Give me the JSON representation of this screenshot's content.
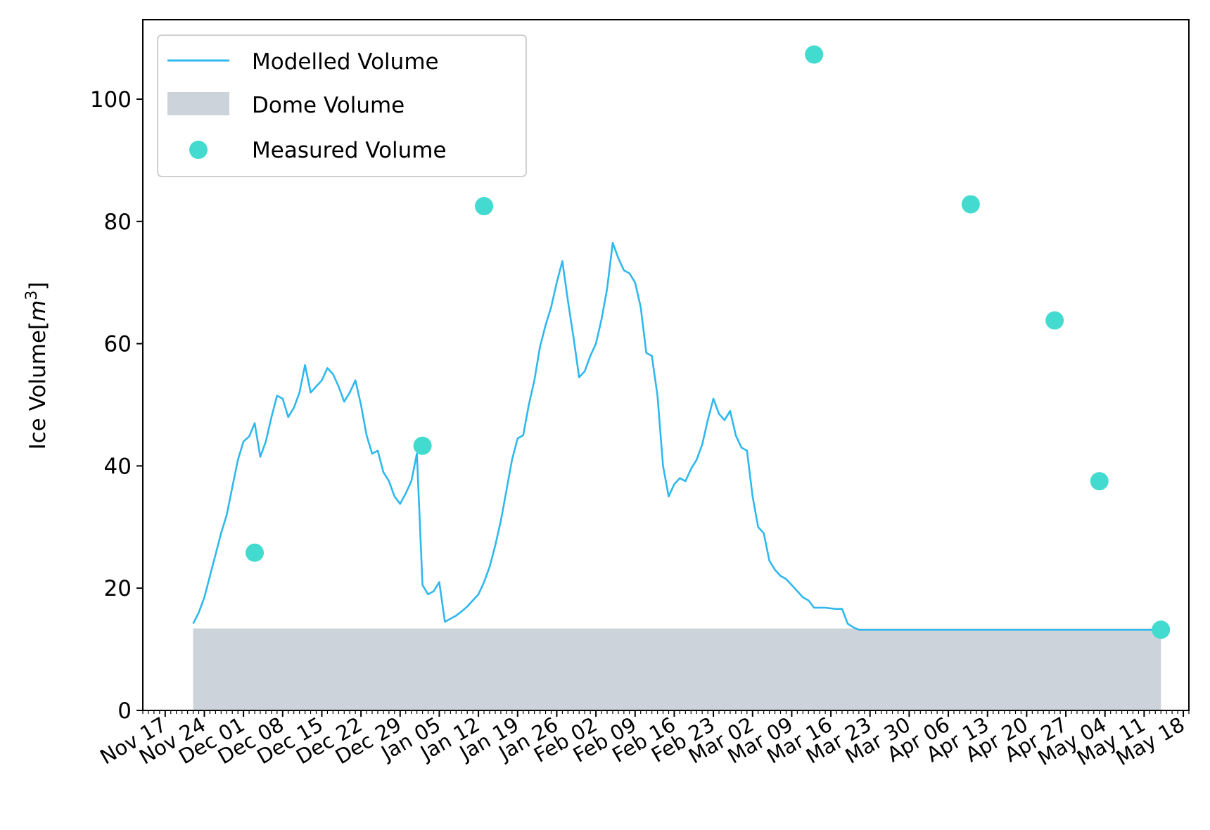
{
  "chart_data": {
    "type": "line",
    "ylabel_text": "Ice Volume[",
    "ylabel_unit_base": "m",
    "ylabel_unit_exp": "3",
    "ylabel_suffix": "]",
    "ylim": [
      0,
      113
    ],
    "xlim": [
      "2018-11-13",
      "2019-05-19"
    ],
    "y_ticks": [
      0,
      20,
      40,
      60,
      80,
      100
    ],
    "x_tick_labels": [
      {
        "date": "2018-11-17",
        "label": "Nov 17"
      },
      {
        "date": "2018-11-24",
        "label": "Nov 24"
      },
      {
        "date": "2018-12-01",
        "label": "Dec 01"
      },
      {
        "date": "2018-12-08",
        "label": "Dec 08"
      },
      {
        "date": "2018-12-15",
        "label": "Dec 15"
      },
      {
        "date": "2018-12-22",
        "label": "Dec 22"
      },
      {
        "date": "2018-12-29",
        "label": "Dec 29"
      },
      {
        "date": "2019-01-05",
        "label": "Jan 05"
      },
      {
        "date": "2019-01-12",
        "label": "Jan 12"
      },
      {
        "date": "2019-01-19",
        "label": "Jan 19"
      },
      {
        "date": "2019-01-26",
        "label": "Jan 26"
      },
      {
        "date": "2019-02-02",
        "label": "Feb 02"
      },
      {
        "date": "2019-02-09",
        "label": "Feb 09"
      },
      {
        "date": "2019-02-16",
        "label": "Feb 16"
      },
      {
        "date": "2019-02-23",
        "label": "Feb 23"
      },
      {
        "date": "2019-03-02",
        "label": "Mar 02"
      },
      {
        "date": "2019-03-09",
        "label": "Mar 09"
      },
      {
        "date": "2019-03-16",
        "label": "Mar 16"
      },
      {
        "date": "2019-03-23",
        "label": "Mar 23"
      },
      {
        "date": "2019-03-30",
        "label": "Mar 30"
      },
      {
        "date": "2019-04-06",
        "label": "Apr 06"
      },
      {
        "date": "2019-04-13",
        "label": "Apr 13"
      },
      {
        "date": "2019-04-20",
        "label": "Apr 20"
      },
      {
        "date": "2019-04-27",
        "label": "Apr 27"
      },
      {
        "date": "2019-05-04",
        "label": "May 04"
      },
      {
        "date": "2019-05-11",
        "label": "May 11"
      },
      {
        "date": "2019-05-18",
        "label": "May 18"
      }
    ],
    "legend_position": "top-left",
    "grid": false,
    "series": [
      {
        "name": "Modelled Volume",
        "type": "line",
        "color": "#2fb8ee",
        "points": [
          [
            "2018-11-22",
            14.2
          ],
          [
            "2018-11-23",
            16.0
          ],
          [
            "2018-11-24",
            18.5
          ],
          [
            "2018-11-25",
            22.0
          ],
          [
            "2018-11-26",
            25.5
          ],
          [
            "2018-11-27",
            29.0
          ],
          [
            "2018-11-28",
            32.0
          ],
          [
            "2018-11-29",
            36.5
          ],
          [
            "2018-11-30",
            41.0
          ],
          [
            "2018-12-01",
            44.0
          ],
          [
            "2018-12-02",
            44.8
          ],
          [
            "2018-12-03",
            47.0
          ],
          [
            "2018-12-04",
            41.5
          ],
          [
            "2018-12-05",
            44.0
          ],
          [
            "2018-12-06",
            48.0
          ],
          [
            "2018-12-07",
            51.5
          ],
          [
            "2018-12-08",
            51.0
          ],
          [
            "2018-12-09",
            48.0
          ],
          [
            "2018-12-10",
            49.5
          ],
          [
            "2018-12-11",
            52.0
          ],
          [
            "2018-12-12",
            56.5
          ],
          [
            "2018-12-13",
            52.0
          ],
          [
            "2018-12-14",
            53.0
          ],
          [
            "2018-12-15",
            54.0
          ],
          [
            "2018-12-16",
            56.0
          ],
          [
            "2018-12-17",
            55.0
          ],
          [
            "2018-12-18",
            53.0
          ],
          [
            "2018-12-19",
            50.5
          ],
          [
            "2018-12-20",
            52.0
          ],
          [
            "2018-12-21",
            54.0
          ],
          [
            "2018-12-22",
            50.0
          ],
          [
            "2018-12-23",
            45.0
          ],
          [
            "2018-12-24",
            42.0
          ],
          [
            "2018-12-25",
            42.5
          ],
          [
            "2018-12-26",
            39.0
          ],
          [
            "2018-12-27",
            37.5
          ],
          [
            "2018-12-28",
            35.0
          ],
          [
            "2018-12-29",
            33.8
          ],
          [
            "2018-12-30",
            35.5
          ],
          [
            "2018-12-31",
            37.5
          ],
          [
            "2019-01-01",
            42.0
          ],
          [
            "2019-01-02",
            20.5
          ],
          [
            "2019-01-03",
            19.0
          ],
          [
            "2019-01-04",
            19.5
          ],
          [
            "2019-01-05",
            21.0
          ],
          [
            "2019-01-06",
            14.5
          ],
          [
            "2019-01-07",
            15.0
          ],
          [
            "2019-01-08",
            15.5
          ],
          [
            "2019-01-09",
            16.2
          ],
          [
            "2019-01-10",
            17.0
          ],
          [
            "2019-01-11",
            18.0
          ],
          [
            "2019-01-12",
            19.0
          ],
          [
            "2019-01-13",
            21.0
          ],
          [
            "2019-01-14",
            23.5
          ],
          [
            "2019-01-15",
            27.0
          ],
          [
            "2019-01-16",
            31.0
          ],
          [
            "2019-01-17",
            36.0
          ],
          [
            "2019-01-18",
            41.0
          ],
          [
            "2019-01-19",
            44.5
          ],
          [
            "2019-01-20",
            45.0
          ],
          [
            "2019-01-21",
            50.0
          ],
          [
            "2019-01-22",
            54.0
          ],
          [
            "2019-01-23",
            59.5
          ],
          [
            "2019-01-24",
            63.0
          ],
          [
            "2019-01-25",
            66.0
          ],
          [
            "2019-01-26",
            70.0
          ],
          [
            "2019-01-27",
            73.5
          ],
          [
            "2019-01-28",
            67.0
          ],
          [
            "2019-01-29",
            61.0
          ],
          [
            "2019-01-30",
            54.5
          ],
          [
            "2019-01-31",
            55.5
          ],
          [
            "2019-02-01",
            58.0
          ],
          [
            "2019-02-02",
            60.0
          ],
          [
            "2019-02-03",
            64.0
          ],
          [
            "2019-02-04",
            69.0
          ],
          [
            "2019-02-05",
            76.5
          ],
          [
            "2019-02-06",
            74.0
          ],
          [
            "2019-02-07",
            72.0
          ],
          [
            "2019-02-08",
            71.5
          ],
          [
            "2019-02-09",
            70.0
          ],
          [
            "2019-02-10",
            66.0
          ],
          [
            "2019-02-11",
            58.5
          ],
          [
            "2019-02-12",
            58.0
          ],
          [
            "2019-02-13",
            51.5
          ],
          [
            "2019-02-14",
            40.0
          ],
          [
            "2019-02-15",
            35.0
          ],
          [
            "2019-02-16",
            37.0
          ],
          [
            "2019-02-17",
            38.0
          ],
          [
            "2019-02-18",
            37.5
          ],
          [
            "2019-02-19",
            39.5
          ],
          [
            "2019-02-20",
            41.0
          ],
          [
            "2019-02-21",
            43.5
          ],
          [
            "2019-02-22",
            47.5
          ],
          [
            "2019-02-23",
            51.0
          ],
          [
            "2019-02-24",
            48.5
          ],
          [
            "2019-02-25",
            47.5
          ],
          [
            "2019-02-26",
            49.0
          ],
          [
            "2019-02-27",
            45.0
          ],
          [
            "2019-02-28",
            43.0
          ],
          [
            "2019-03-01",
            42.5
          ],
          [
            "2019-03-02",
            35.0
          ],
          [
            "2019-03-03",
            30.0
          ],
          [
            "2019-03-04",
            29.0
          ],
          [
            "2019-03-05",
            24.5
          ],
          [
            "2019-03-06",
            23.0
          ],
          [
            "2019-03-07",
            22.0
          ],
          [
            "2019-03-08",
            21.5
          ],
          [
            "2019-03-09",
            20.5
          ],
          [
            "2019-03-10",
            19.5
          ],
          [
            "2019-03-11",
            18.5
          ],
          [
            "2019-03-12",
            18.0
          ],
          [
            "2019-03-13",
            16.8
          ],
          [
            "2019-03-14",
            16.8
          ],
          [
            "2019-03-15",
            16.8
          ],
          [
            "2019-03-16",
            16.7
          ],
          [
            "2019-03-17",
            16.6
          ],
          [
            "2019-03-18",
            16.6
          ],
          [
            "2019-03-19",
            14.2
          ],
          [
            "2019-03-20",
            13.6
          ],
          [
            "2019-03-21",
            13.2
          ],
          [
            "2019-03-24",
            13.2
          ],
          [
            "2019-04-10",
            13.2
          ],
          [
            "2019-04-30",
            13.2
          ],
          [
            "2019-05-14",
            13.2
          ]
        ]
      },
      {
        "name": "Dome Volume",
        "type": "area",
        "color": "#cdd3da",
        "x_start": "2018-11-22",
        "x_end": "2019-05-14",
        "value": 13.4
      },
      {
        "name": "Measured Volume",
        "type": "scatter",
        "color": "#43dbcf",
        "points": [
          [
            "2018-12-03",
            25.8
          ],
          [
            "2019-01-02",
            43.3
          ],
          [
            "2019-01-13",
            82.5
          ],
          [
            "2019-03-13",
            107.3
          ],
          [
            "2019-04-10",
            82.8
          ],
          [
            "2019-04-25",
            63.8
          ],
          [
            "2019-05-03",
            37.5
          ],
          [
            "2019-05-14",
            13.2
          ]
        ]
      }
    ]
  }
}
